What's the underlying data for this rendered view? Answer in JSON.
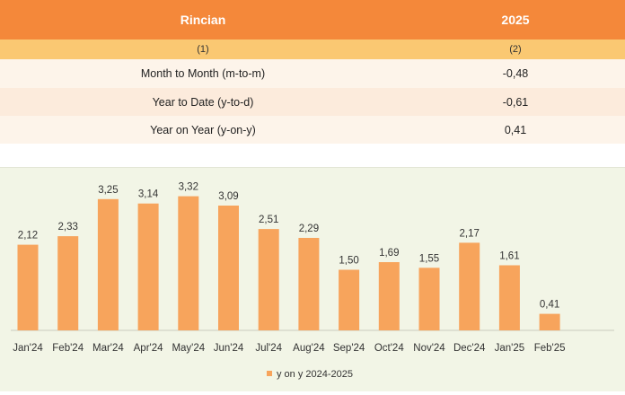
{
  "table": {
    "header": {
      "col1": "Rincian",
      "col2": "2025"
    },
    "subheader": {
      "col1": "(1)",
      "col2": "(2)"
    },
    "rows": [
      {
        "label": "Month to Month (m-to-m)",
        "value": "-0,48"
      },
      {
        "label": "Year to Date (y-to-d)",
        "value": "-0,61"
      },
      {
        "label": "Year on Year (y-on-y)",
        "value": "0,41"
      }
    ]
  },
  "colors": {
    "accent": "#F4883A",
    "bar": "#F7A45C",
    "subheader": "#FAC872"
  },
  "chart_data": {
    "type": "bar",
    "title": "",
    "xlabel": "",
    "ylabel": "",
    "ylim": [
      0,
      3.6
    ],
    "grid": false,
    "legend_position": "bottom",
    "categories": [
      "Jan'24",
      "Feb'24",
      "Mar'24",
      "Apr'24",
      "May'24",
      "Jun'24",
      "Jul'24",
      "Aug'24",
      "Sep'24",
      "Oct'24",
      "Nov'24",
      "Dec'24",
      "Jan'25",
      "Feb'25"
    ],
    "series": [
      {
        "name": "y on y 2024-2025",
        "values": [
          2.12,
          2.33,
          3.25,
          3.14,
          3.32,
          3.09,
          2.51,
          2.29,
          1.5,
          1.69,
          1.55,
          2.17,
          1.61,
          0.41
        ],
        "labels": [
          "2,12",
          "2,33",
          "3,25",
          "3,14",
          "3,32",
          "3,09",
          "2,51",
          "2,29",
          "1,50",
          "1,69",
          "1,55",
          "2,17",
          "1,61",
          "0,41"
        ]
      }
    ]
  }
}
